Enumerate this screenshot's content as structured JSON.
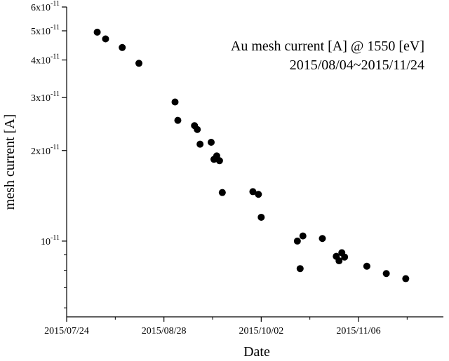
{
  "chart_data": {
    "type": "scatter",
    "title": "",
    "annotations": [
      "Au mesh current [A] @ 1550 [eV]",
      "2015/08/04~2015/11/24"
    ],
    "xlabel": "Date",
    "ylabel": "mesh current [A]",
    "x_ticks": [
      "2015/07/24",
      "2015/08/28",
      "2015/10/02",
      "2015/11/06"
    ],
    "y_ticks": [
      {
        "value": 6e-11,
        "mantissa": "6x10",
        "exponent": "-11"
      },
      {
        "value": 5e-11,
        "mantissa": "5x10",
        "exponent": "-11"
      },
      {
        "value": 4e-11,
        "mantissa": "4x10",
        "exponent": "-11"
      },
      {
        "value": 3e-11,
        "mantissa": "3x10",
        "exponent": "-11"
      },
      {
        "value": 2e-11,
        "mantissa": "2x10",
        "exponent": "-11"
      },
      {
        "value": 1e-11,
        "mantissa": "10",
        "exponent": "-11"
      }
    ],
    "xlim": [
      "2015/07/24",
      "2015/12-01"
    ],
    "ylim": [
      5.6e-12,
      6e-11
    ],
    "y_scale": "log",
    "grid": false,
    "marker_color": "#000000",
    "points": [
      {
        "x": "2015-08-04",
        "y": 4.95e-11
      },
      {
        "x": "2015-08-07",
        "y": 4.7e-11
      },
      {
        "x": "2015-08-13",
        "y": 4.4e-11
      },
      {
        "x": "2015-08-19",
        "y": 3.9e-11
      },
      {
        "x": "2015-09-01",
        "y": 2.9e-11
      },
      {
        "x": "2015-09-02",
        "y": 2.52e-11
      },
      {
        "x": "2015-09-08",
        "y": 2.42e-11
      },
      {
        "x": "2015-09-09",
        "y": 2.35e-11
      },
      {
        "x": "2015-09-10",
        "y": 2.1e-11
      },
      {
        "x": "2015-09-14",
        "y": 2.13e-11
      },
      {
        "x": "2015-09-15",
        "y": 1.87e-11
      },
      {
        "x": "2015-09-16",
        "y": 1.92e-11
      },
      {
        "x": "2015-09-17",
        "y": 1.85e-11
      },
      {
        "x": "2015-09-18",
        "y": 1.45e-11
      },
      {
        "x": "2015-09-29",
        "y": 1.46e-11
      },
      {
        "x": "2015-10-01",
        "y": 1.43e-11
      },
      {
        "x": "2015-10-02",
        "y": 1.2e-11
      },
      {
        "x": "2015-10-15",
        "y": 1e-11
      },
      {
        "x": "2015-10-16",
        "y": 8.1e-12
      },
      {
        "x": "2015-10-17",
        "y": 1.04e-11
      },
      {
        "x": "2015-10-24",
        "y": 1.02e-11
      },
      {
        "x": "2015-10-29",
        "y": 8.9e-12
      },
      {
        "x": "2015-10-30",
        "y": 8.6e-12
      },
      {
        "x": "2015-10-31",
        "y": 9.15e-12
      },
      {
        "x": "2015-11-01",
        "y": 8.85e-12
      },
      {
        "x": "2015-11-09",
        "y": 8.25e-12
      },
      {
        "x": "2015-11-16",
        "y": 7.8e-12
      },
      {
        "x": "2015-11-23",
        "y": 7.5e-12
      }
    ]
  }
}
